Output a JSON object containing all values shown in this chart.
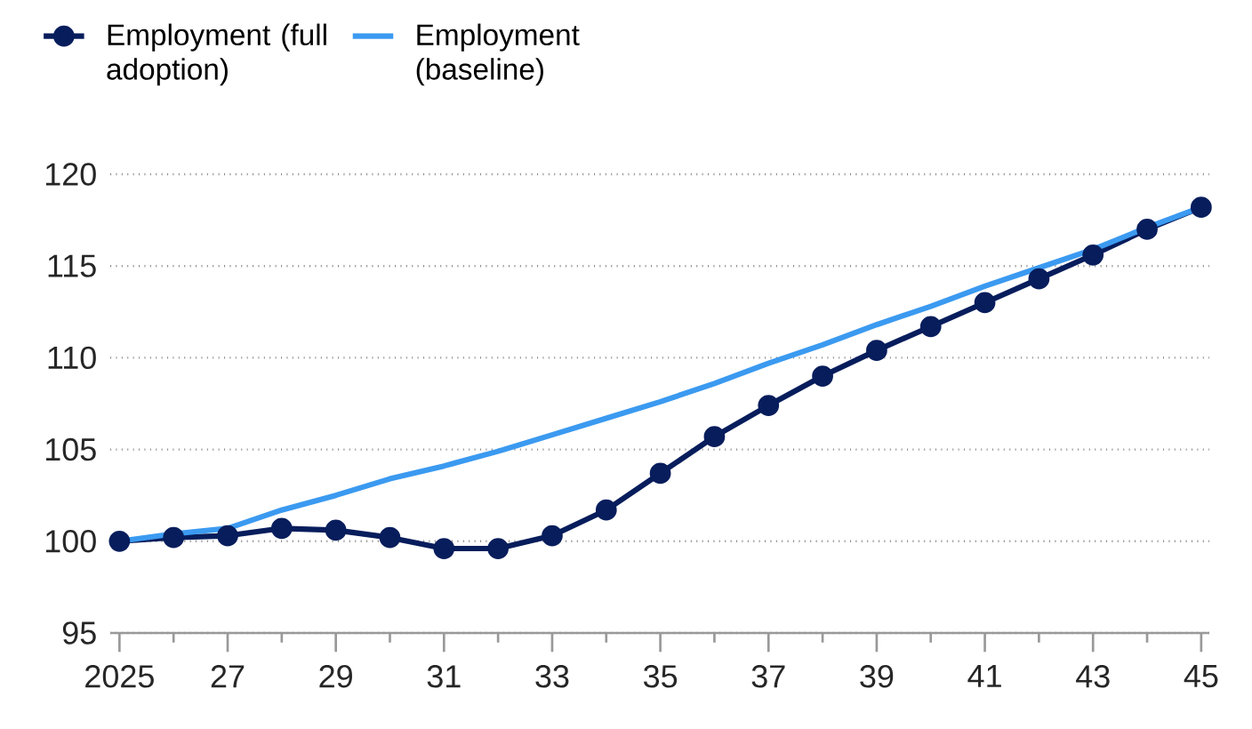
{
  "chart_data": {
    "type": "line",
    "x": [
      2025,
      2026,
      2027,
      2028,
      2029,
      2030,
      2031,
      2032,
      2033,
      2034,
      2035,
      2036,
      2037,
      2038,
      2039,
      2040,
      2041,
      2042,
      2043,
      2044,
      2045
    ],
    "series": [
      {
        "name": "Employment (full adoption)",
        "color": "#071d5c",
        "marker": "circle",
        "values": [
          100,
          100.2,
          100.3,
          100.7,
          100.6,
          100.2,
          99.6,
          99.6,
          100.3,
          101.7,
          103.7,
          105.7,
          107.4,
          109,
          110.4,
          111.7,
          113,
          114.3,
          115.6,
          117,
          118.2
        ]
      },
      {
        "name": "Employment (baseline)",
        "color": "#3b9af0",
        "marker": "none",
        "values": [
          100,
          100.4,
          100.7,
          101.7,
          102.5,
          103.4,
          104.1,
          104.9,
          105.8,
          106.7,
          107.6,
          108.6,
          109.7,
          110.7,
          111.8,
          112.8,
          113.9,
          114.9,
          115.9,
          117.1,
          118.2
        ]
      }
    ],
    "xlim": [
      2024.83,
      2045.15
    ],
    "ylim": [
      95,
      120
    ],
    "xticks": [
      {
        "value": 2025,
        "label": "2025"
      },
      {
        "value": 2026,
        "label": null
      },
      {
        "value": 2027,
        "label": "27"
      },
      {
        "value": 2028,
        "label": null
      },
      {
        "value": 2029,
        "label": "29"
      },
      {
        "value": 2030,
        "label": null
      },
      {
        "value": 2031,
        "label": "31"
      },
      {
        "value": 2032,
        "label": null
      },
      {
        "value": 2033,
        "label": "33"
      },
      {
        "value": 2034,
        "label": null
      },
      {
        "value": 2035,
        "label": "35"
      },
      {
        "value": 2036,
        "label": null
      },
      {
        "value": 2037,
        "label": "37"
      },
      {
        "value": 2038,
        "label": null
      },
      {
        "value": 2039,
        "label": "39"
      },
      {
        "value": 2040,
        "label": null
      },
      {
        "value": 2041,
        "label": "41"
      },
      {
        "value": 2042,
        "label": null
      },
      {
        "value": 2043,
        "label": "43"
      },
      {
        "value": 2044,
        "label": null
      },
      {
        "value": 2045,
        "label": "45"
      }
    ],
    "yticks": [
      95,
      100,
      105,
      110,
      115,
      120
    ],
    "grid": "y",
    "legend": "top left"
  }
}
